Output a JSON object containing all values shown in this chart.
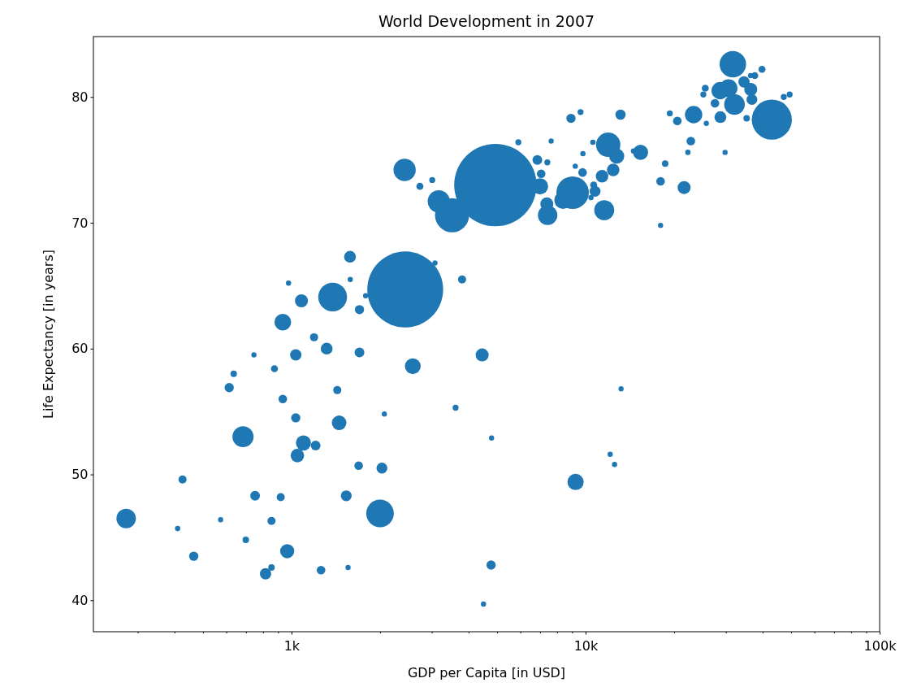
{
  "chart_data": {
    "type": "bubble",
    "title": "World Development in 2007",
    "xlabel": "GDP per Capita [in USD]",
    "ylabel": "Life Expectancy [in years]",
    "log": "x",
    "marker": "circle",
    "xlim": [
      212,
      100000
    ],
    "ylim": [
      37.5,
      84.8
    ],
    "xticks": [
      {
        "value": 300,
        "label": null
      },
      {
        "value": 400,
        "label": null
      },
      {
        "value": 500,
        "label": null
      },
      {
        "value": 600,
        "label": null
      },
      {
        "value": 700,
        "label": null
      },
      {
        "value": 800,
        "label": null
      },
      {
        "value": 900,
        "label": null
      },
      {
        "value": 1000,
        "label": "1k"
      },
      {
        "value": 2000,
        "label": null
      },
      {
        "value": 3000,
        "label": null
      },
      {
        "value": 4000,
        "label": null
      },
      {
        "value": 5000,
        "label": null
      },
      {
        "value": 6000,
        "label": null
      },
      {
        "value": 7000,
        "label": null
      },
      {
        "value": 8000,
        "label": null
      },
      {
        "value": 9000,
        "label": null
      },
      {
        "value": 10000,
        "label": "10k"
      },
      {
        "value": 20000,
        "label": null
      },
      {
        "value": 30000,
        "label": null
      },
      {
        "value": 40000,
        "label": null
      },
      {
        "value": 50000,
        "label": null
      },
      {
        "value": 60000,
        "label": null
      },
      {
        "value": 70000,
        "label": null
      },
      {
        "value": 80000,
        "label": null
      },
      {
        "value": 90000,
        "label": null
      },
      {
        "value": 100000,
        "label": "100k"
      }
    ],
    "yticks": [
      40,
      50,
      60,
      70,
      80
    ],
    "series": [
      {
        "color": "#1f77b4",
        "x": [
          1581,
          1584,
          977,
          1081,
          1380,
          1787,
          1703,
          934,
          1193,
          1317,
          1703,
          745,
          1034,
          875,
          636,
          614,
          1431,
          934,
          2069,
          1034,
          1452,
          684,
          1098,
          1208,
          1047,
          1692,
          2030,
          426,
          752,
          919,
          1535,
          2000,
          274,
          574,
          855,
          410,
          699,
          967,
          465,
          855,
          816,
          1260,
          1557,
          3076,
          3802,
          2436,
          4449,
          2585,
          13204,
          3614,
          4790,
          12126,
          12550,
          9247,
          4772,
          4497,
          2425,
          3010,
          2733,
          3168,
          3516,
          4935,
          5908,
          7638,
          6855,
          7413,
          7063,
          6998,
          7383,
          7430,
          9036,
          8385,
          9795,
          9226,
          9767,
          8919,
          9616,
          13146,
          10590,
          11940,
          12759,
          12414,
          11376,
          10656,
          10772,
          10435,
          11573,
          14555,
          15380,
          31680,
          39810,
          37620,
          36390,
          34570,
          36450,
          28690,
          30630,
          25530,
          25150,
          27540,
          32090,
          36780,
          35300,
          28740,
          25740,
          23300,
          20510,
          19340,
          42990,
          47210,
          49430,
          22800,
          22280,
          29810,
          18650,
          17990,
          21630,
          17990
        ],
        "values": [
          67.3,
          65.5,
          65.2,
          63.8,
          64.1,
          64.2,
          63.1,
          62.1,
          60.9,
          60.0,
          59.7,
          59.5,
          59.5,
          58.4,
          58.0,
          56.9,
          56.7,
          56.0,
          54.8,
          54.5,
          54.1,
          53.0,
          52.5,
          52.3,
          51.5,
          50.7,
          50.5,
          49.6,
          48.3,
          48.2,
          48.3,
          46.9,
          46.5,
          46.4,
          46.3,
          45.7,
          44.8,
          43.9,
          43.5,
          42.6,
          42.1,
          42.4,
          42.6,
          66.8,
          65.5,
          64.7,
          59.5,
          58.6,
          56.8,
          55.3,
          52.9,
          51.6,
          50.8,
          49.4,
          42.8,
          39.7,
          74.2,
          73.4,
          72.9,
          71.7,
          70.6,
          73.0,
          76.4,
          76.5,
          75.0,
          74.8,
          73.9,
          72.9,
          71.5,
          70.6,
          72.4,
          71.8,
          75.5,
          74.5,
          74.0,
          78.3,
          78.8,
          78.6,
          76.4,
          76.2,
          75.3,
          74.2,
          73.7,
          73.0,
          72.5,
          72.0,
          71.0,
          75.7,
          75.6,
          82.6,
          82.2,
          81.7,
          81.7,
          81.2,
          80.6,
          80.5,
          80.7,
          80.7,
          80.2,
          79.5,
          79.4,
          79.8,
          78.3,
          78.4,
          77.9,
          78.6,
          78.1,
          78.7,
          78.2,
          80.0,
          80.2,
          76.5,
          75.6,
          75.6,
          74.7,
          73.3,
          72.8,
          69.8
        ],
        "sizes": [
          0.0207,
          0.004,
          0.004,
          0.0249,
          0.122,
          0.004,
          0.0126,
          0.0413,
          0.0097,
          0.0207,
          0.014,
          0.004,
          0.019,
          0.0072,
          0.0062,
          0.0126,
          0.0097,
          0.0109,
          0.004,
          0.0126,
          0.0315,
          0.0657,
          0.0336,
          0.014,
          0.0268,
          0.0109,
          0.0175,
          0.0097,
          0.014,
          0.0097,
          0.0175,
          0.1124,
          0.056,
          0.004,
          0.0097,
          0.0042,
          0.0062,
          0.0294,
          0.0126,
          0.0062,
          0.019,
          0.0109,
          0.004,
          0.004,
          0.0097,
          0.848,
          0.0249,
          0.0366,
          0.004,
          0.0053,
          0.004,
          0.004,
          0.004,
          0.0389,
          0.0126,
          0.004,
          0.073,
          0.0053,
          0.0072,
          0.073,
          0.1716,
          1,
          0.0053,
          0.004,
          0.014,
          0.0053,
          0.0109,
          0.0389,
          0.0249,
          0.056,
          0.1556,
          0.0445,
          0.0042,
          0.004,
          0.0109,
          0.0126,
          0.0053,
          0.0154,
          0.0042,
          0.0875,
          0.0336,
          0.0231,
          0.0231,
          0.0072,
          0.0175,
          0.0042,
          0.0589,
          0.0042,
          0.0336,
          0.1034,
          0.0072,
          0.0072,
          0.004,
          0.019,
          0.0249,
          0.0445,
          0.047,
          0.0072,
          0.0053,
          0.0109,
          0.0627,
          0.0175,
          0.0062,
          0.0207,
          0.004,
          0.0445,
          0.0109,
          0.0053,
          0.2373,
          0.0053,
          0.0053,
          0.0109,
          0.0042,
          0.004,
          0.0062,
          0.0109,
          0.0249,
          0.004
        ]
      }
    ]
  }
}
